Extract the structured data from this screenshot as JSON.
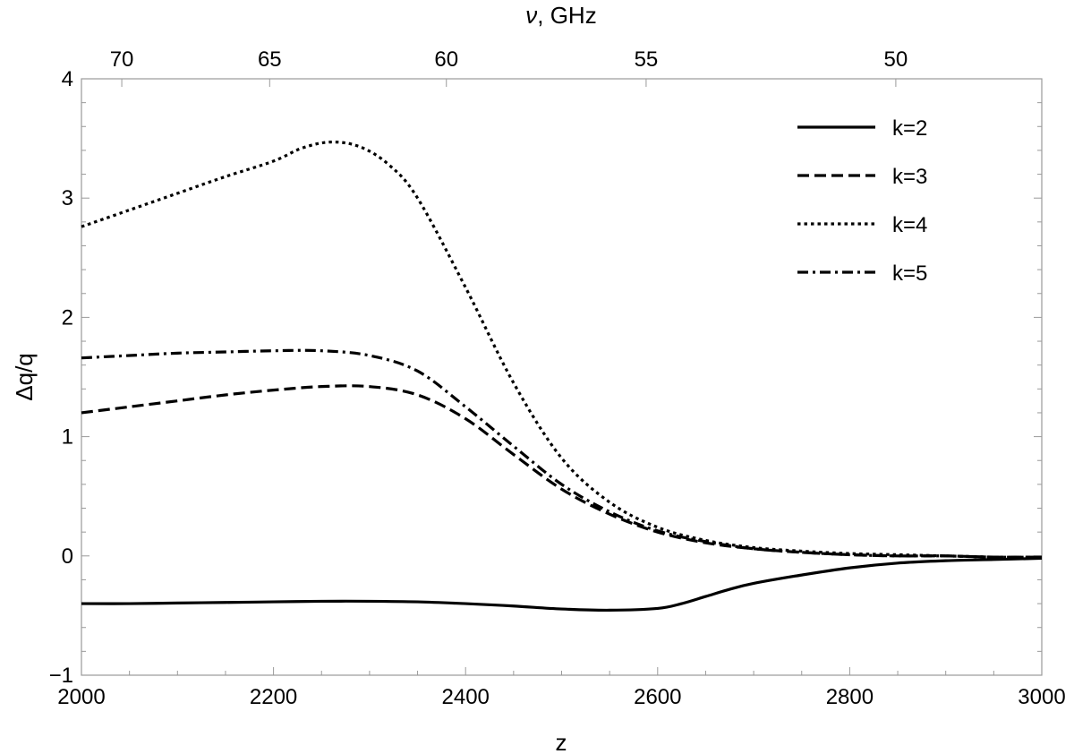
{
  "chart_data": {
    "type": "line",
    "xlabel": "z",
    "ylabel": "Δq/q",
    "top_axis": {
      "label_var": "ν",
      "label_unit": ", GHz",
      "ticks": [
        {
          "z": 2042,
          "label": "70"
        },
        {
          "z": 2196,
          "label": "65"
        },
        {
          "z": 2380,
          "label": "60"
        },
        {
          "z": 2588,
          "label": "55"
        },
        {
          "z": 2848,
          "label": "50"
        }
      ]
    },
    "xlim": [
      2000,
      3000
    ],
    "ylim": [
      -1,
      4
    ],
    "x_ticks": [
      "2000",
      "2200",
      "2400",
      "2600",
      "2800",
      "3000"
    ],
    "y_ticks": [
      "-1",
      "0",
      "1",
      "2",
      "3",
      "4"
    ],
    "legend_position": "top-right",
    "grid": false,
    "series": [
      {
        "name": "k=2",
        "style": "solid",
        "x": [
          2000,
          2050,
          2100,
          2150,
          2200,
          2250,
          2300,
          2350,
          2400,
          2450,
          2500,
          2550,
          2600,
          2625,
          2650,
          2675,
          2700,
          2750,
          2800,
          2850,
          2900,
          2950,
          3000
        ],
        "y": [
          -0.4,
          -0.4,
          -0.395,
          -0.39,
          -0.385,
          -0.38,
          -0.38,
          -0.385,
          -0.4,
          -0.42,
          -0.445,
          -0.455,
          -0.44,
          -0.4,
          -0.34,
          -0.28,
          -0.23,
          -0.16,
          -0.1,
          -0.06,
          -0.04,
          -0.03,
          -0.02
        ]
      },
      {
        "name": "k=3",
        "style": "dashed",
        "x": [
          2000,
          2050,
          2100,
          2150,
          2200,
          2250,
          2300,
          2350,
          2400,
          2450,
          2500,
          2550,
          2600,
          2650,
          2700,
          2750,
          2800,
          2850,
          2900,
          2950,
          3000
        ],
        "y": [
          1.2,
          1.25,
          1.3,
          1.35,
          1.39,
          1.42,
          1.42,
          1.35,
          1.15,
          0.85,
          0.56,
          0.35,
          0.2,
          0.11,
          0.06,
          0.03,
          0.01,
          0.0,
          0.0,
          -0.01,
          -0.01
        ]
      },
      {
        "name": "k=4",
        "style": "dotted",
        "x": [
          2000,
          2050,
          2100,
          2150,
          2200,
          2230,
          2260,
          2290,
          2320,
          2350,
          2400,
          2450,
          2500,
          2550,
          2600,
          2650,
          2700,
          2750,
          2800,
          2850,
          2900,
          2950,
          3000
        ],
        "y": [
          2.76,
          2.9,
          3.04,
          3.18,
          3.31,
          3.42,
          3.47,
          3.43,
          3.28,
          3.0,
          2.25,
          1.45,
          0.82,
          0.45,
          0.24,
          0.13,
          0.07,
          0.04,
          0.02,
          0.01,
          0.0,
          -0.01,
          -0.01
        ]
      },
      {
        "name": "k=5",
        "style": "dashdot",
        "x": [
          2000,
          2050,
          2100,
          2150,
          2200,
          2250,
          2300,
          2350,
          2400,
          2450,
          2500,
          2550,
          2600,
          2650,
          2700,
          2750,
          2800,
          2850,
          2900,
          2950,
          3000
        ],
        "y": [
          1.66,
          1.68,
          1.7,
          1.71,
          1.72,
          1.72,
          1.68,
          1.55,
          1.25,
          0.92,
          0.6,
          0.37,
          0.21,
          0.12,
          0.06,
          0.03,
          0.01,
          0.0,
          0.0,
          -0.01,
          -0.01
        ]
      }
    ]
  }
}
